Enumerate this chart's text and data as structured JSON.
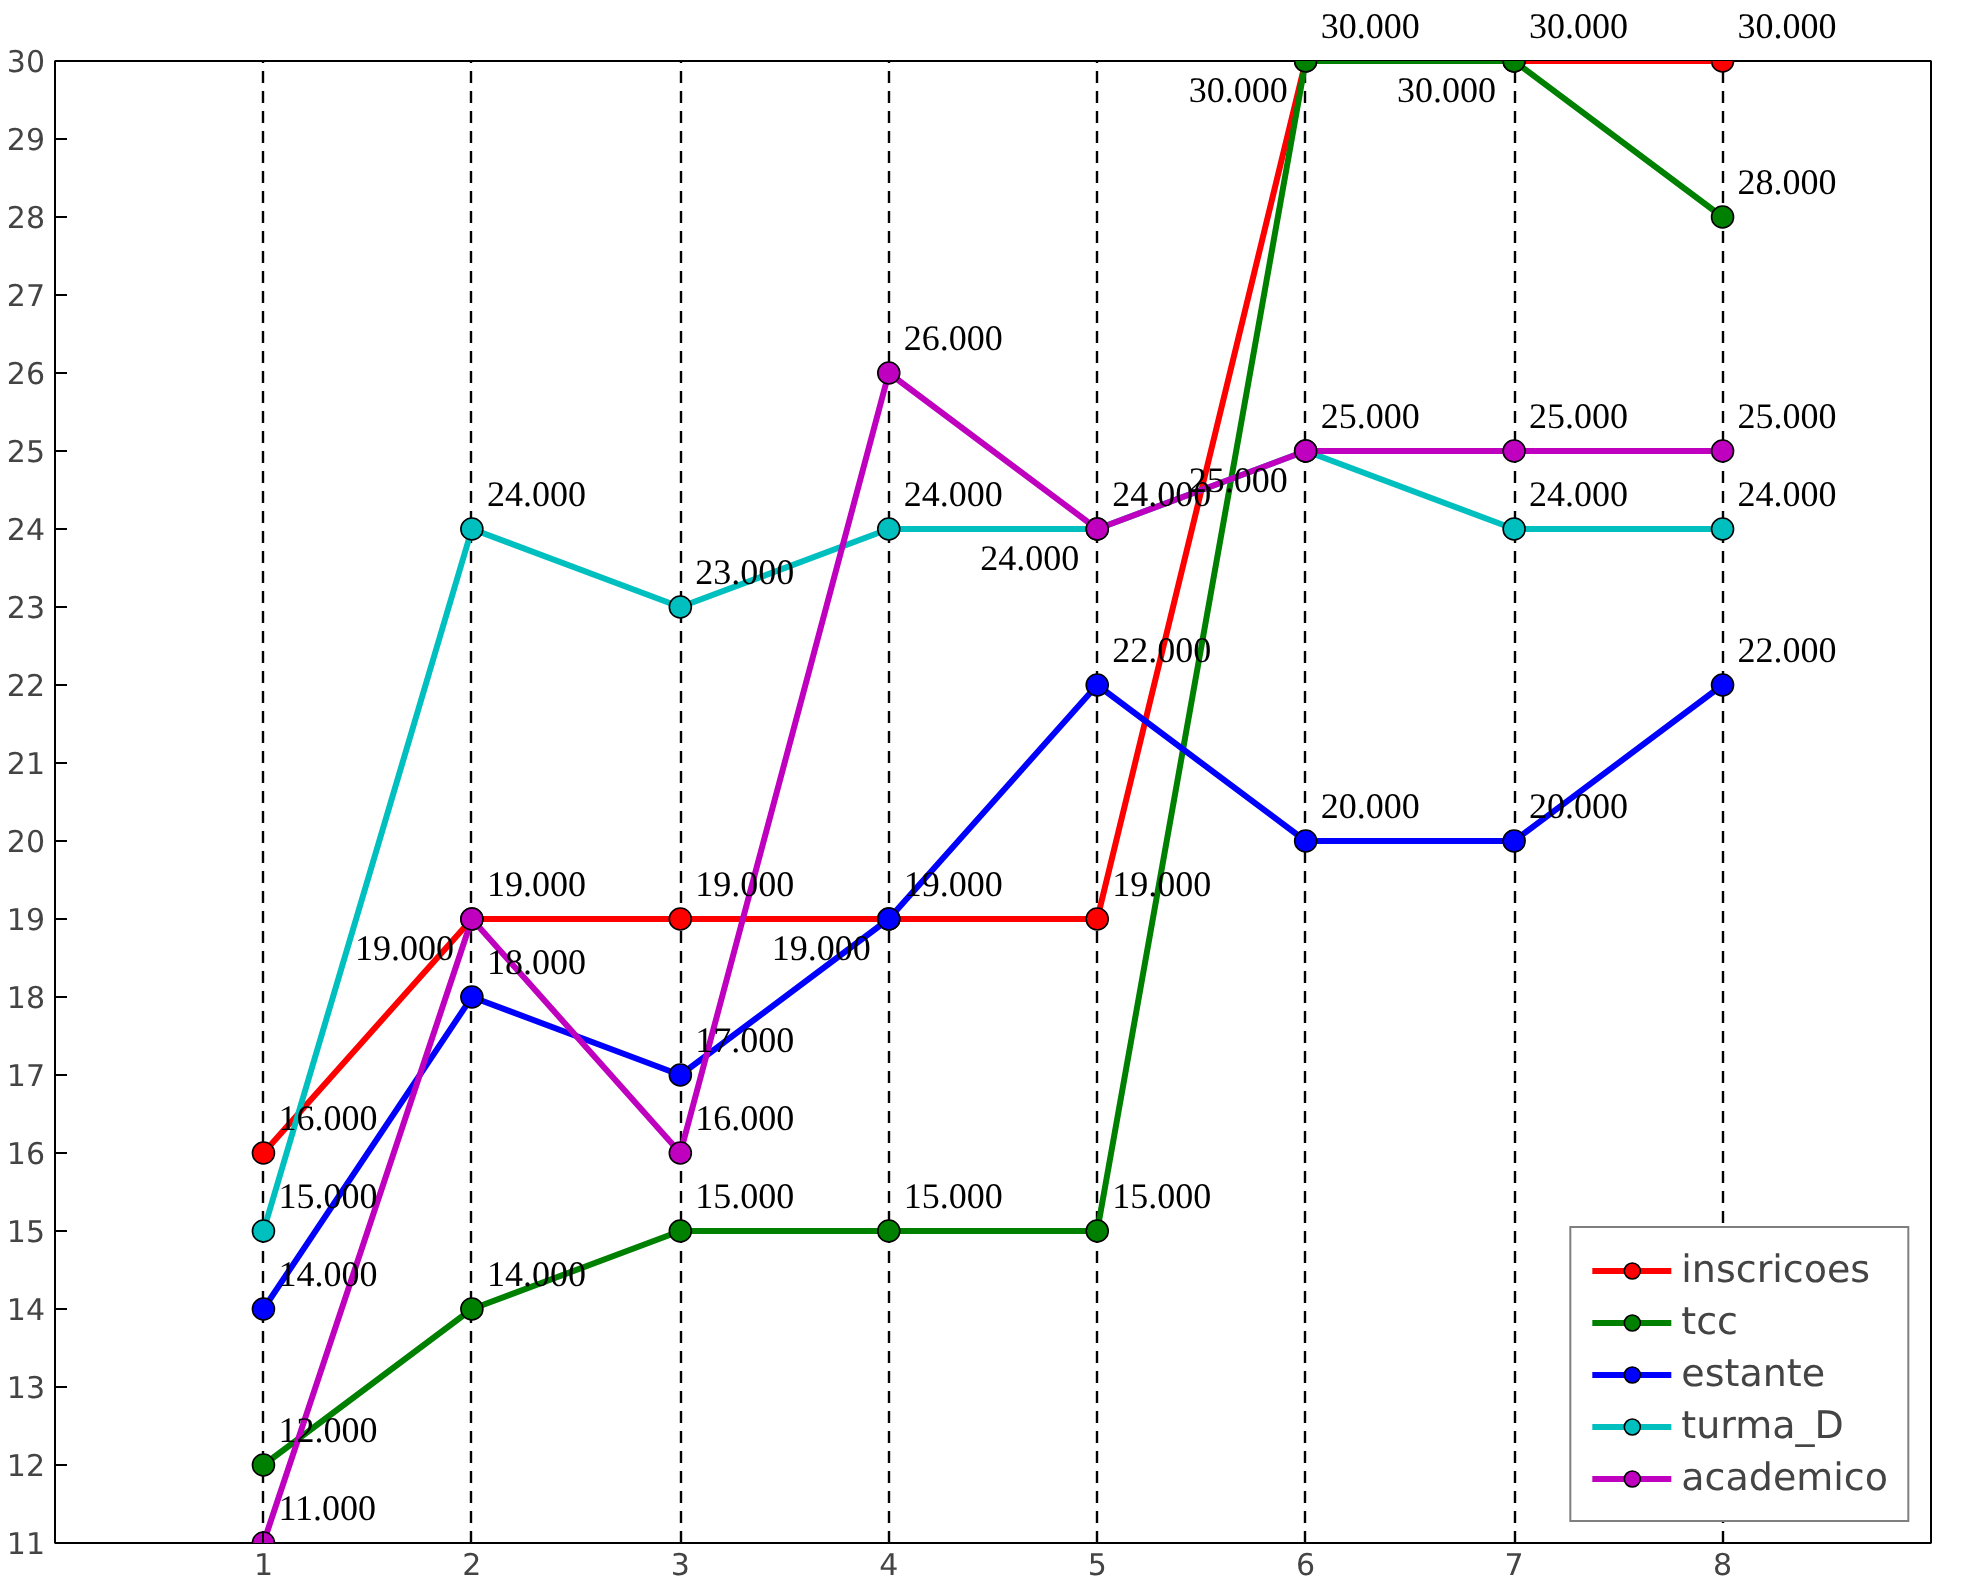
{
  "chart_data": {
    "type": "line",
    "x": [
      1,
      2,
      3,
      4,
      5,
      6,
      7,
      8
    ],
    "xlim": [
      0,
      9
    ],
    "xticks": [
      1,
      2,
      3,
      4,
      5,
      6,
      7,
      8
    ],
    "ylim": [
      11,
      30
    ],
    "yticks": [
      11,
      12,
      13,
      14,
      15,
      16,
      17,
      18,
      19,
      20,
      21,
      22,
      23,
      24,
      25,
      26,
      27,
      28,
      29,
      30
    ],
    "grid": "x",
    "legend": "bottom right",
    "marker": "circle",
    "line_style": "solid",
    "series": [
      {
        "name": "inscricoes",
        "color": "#ff0000",
        "values": [
          16,
          19,
          19,
          19,
          19,
          30,
          30,
          30
        ],
        "value_labels": [
          "16.000",
          "19.000",
          "19.000",
          "19.000",
          "19.000",
          "30.000",
          "30.000",
          "30.000"
        ]
      },
      {
        "name": "tcc",
        "color": "#008000",
        "values": [
          12,
          14,
          15,
          15,
          15,
          30,
          30,
          28
        ],
        "value_labels": [
          "12.000",
          "14.000",
          "15.000",
          "15.000",
          "15.000",
          "30.000",
          "30.000",
          "28.000"
        ]
      },
      {
        "name": "estante",
        "color": "#0000ff",
        "values": [
          14,
          18,
          17,
          19,
          22,
          20,
          20,
          22
        ],
        "value_labels": [
          "14.000",
          "18.000",
          "17.000",
          "19.000",
          "22.000",
          "20.000",
          "20.000",
          "22.000"
        ]
      },
      {
        "name": "turma_D",
        "color": "#00bfbf",
        "values": [
          15,
          24,
          23,
          24,
          24,
          25,
          24,
          24
        ],
        "value_labels": [
          "15.000",
          "24.000",
          "23.000",
          "24.000",
          "24.000",
          "25.000",
          "24.000",
          "24.000"
        ]
      },
      {
        "name": "academico",
        "color": "#bf00bf",
        "values": [
          11,
          19,
          16,
          26,
          24,
          25,
          25,
          25
        ],
        "value_labels": [
          "11.000",
          "19.000",
          "16.000",
          "26.000",
          "24.000",
          "25.000",
          "25.000",
          "25.000"
        ]
      }
    ]
  }
}
